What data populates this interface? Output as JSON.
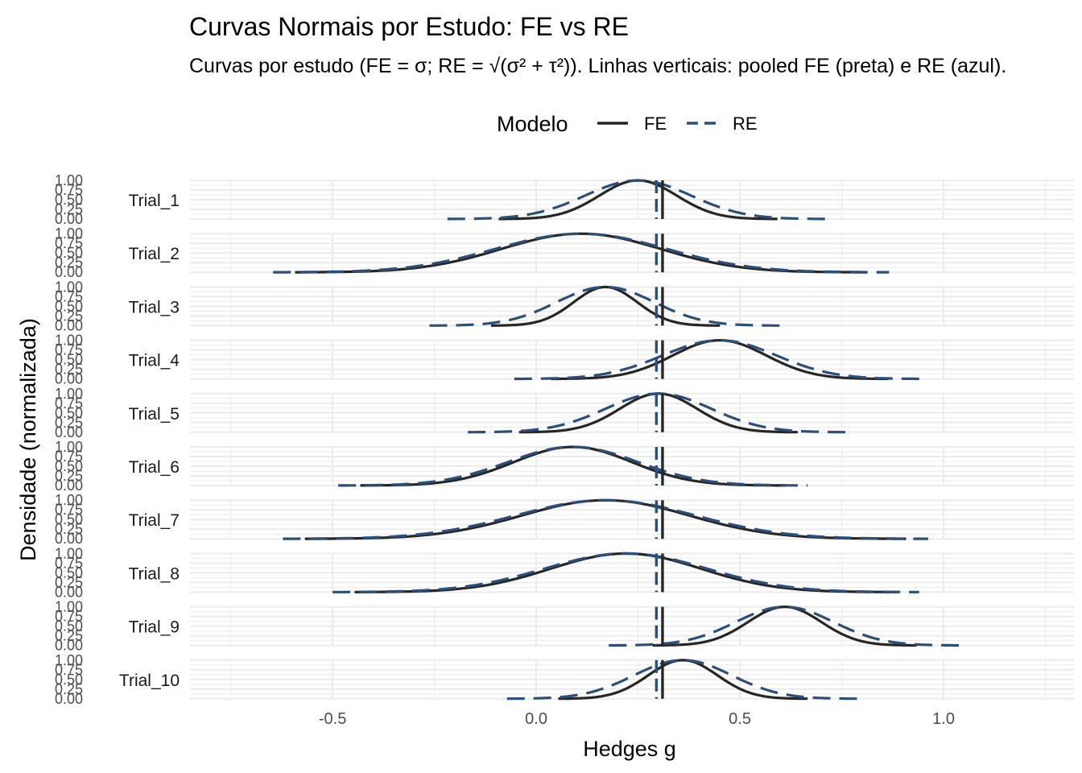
{
  "chart_data": {
    "type": "line",
    "title": "Curvas Normais por Estudo: FE vs RE",
    "subtitle": "Curvas por estudo (FE = σ; RE = √(σ² + τ²)). Linhas verticais: pooled FE (preta) e RE (azul).",
    "xlabel": "Hedges g",
    "ylabel": "Densidade (normalizada)",
    "xlim": [
      -0.85,
      1.32
    ],
    "x_ticks": [
      -0.5,
      0.0,
      0.5,
      1.0
    ],
    "x_tick_labels": [
      "-0.5",
      "0.0",
      "0.5",
      "1.0"
    ],
    "ylim": [
      0,
      1
    ],
    "y_tick_labels": [
      "0.00",
      "0.25",
      "0.50",
      "0.75",
      "1.00"
    ],
    "legend": {
      "title": "Modelo",
      "position": "top",
      "entries": [
        {
          "label": "FE",
          "color": "#262626",
          "dash": "solid"
        },
        {
          "label": "RE",
          "color": "#2c4e78",
          "dash": "dashed"
        }
      ]
    },
    "pooled": {
      "FE": 0.31,
      "RE": 0.295
    },
    "tau": 0.085,
    "grid": true,
    "studies": [
      {
        "name": "Trial_1",
        "mean": 0.25,
        "sd_fe": 0.095,
        "sd_re": 0.13
      },
      {
        "name": "Trial_2",
        "mean": 0.11,
        "sd_fe": 0.195,
        "sd_re": 0.21
      },
      {
        "name": "Trial_3",
        "mean": 0.17,
        "sd_fe": 0.078,
        "sd_re": 0.12
      },
      {
        "name": "Trial_4",
        "mean": 0.45,
        "sd_fe": 0.115,
        "sd_re": 0.14
      },
      {
        "name": "Trial_5",
        "mean": 0.3,
        "sd_fe": 0.095,
        "sd_re": 0.13
      },
      {
        "name": "Trial_6",
        "mean": 0.09,
        "sd_fe": 0.145,
        "sd_re": 0.16
      },
      {
        "name": "Trial_7",
        "mean": 0.17,
        "sd_fe": 0.205,
        "sd_re": 0.22
      },
      {
        "name": "Trial_8",
        "mean": 0.22,
        "sd_fe": 0.185,
        "sd_re": 0.2
      },
      {
        "name": "Trial_9",
        "mean": 0.61,
        "sd_fe": 0.09,
        "sd_re": 0.12
      },
      {
        "name": "Trial_10",
        "mean": 0.36,
        "sd_fe": 0.085,
        "sd_re": 0.12
      }
    ]
  }
}
